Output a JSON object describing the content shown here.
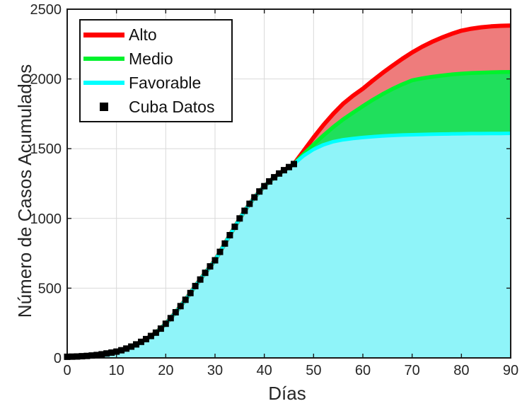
{
  "figure": {
    "background": "#ffffff"
  },
  "chart_data": {
    "type": "line",
    "title": "",
    "xlabel": "Días",
    "ylabel": "Número de Casos Acumulados",
    "xlim": [
      0,
      90
    ],
    "ylim": [
      0,
      2500
    ],
    "xticks": [
      0,
      10,
      20,
      30,
      40,
      50,
      60,
      70,
      80,
      90
    ],
    "yticks": [
      0,
      500,
      1000,
      1500,
      2000,
      2500
    ],
    "grid": true,
    "legend_position": "top-left",
    "colors": {
      "axis": "#1a1a1a",
      "grid": "#d9d9d9",
      "text": "#262626",
      "background": "#ffffff"
    },
    "series": [
      {
        "name": "Alto",
        "type": "line-area",
        "color": "#ff0000",
        "fill": "#ee7c7c",
        "line_width": 6,
        "x": [
          0,
          2,
          4,
          6,
          8,
          10,
          12,
          14,
          16,
          18,
          20,
          22,
          24,
          26,
          28,
          30,
          32,
          34,
          36,
          38,
          40,
          42,
          44,
          46,
          48,
          50,
          52,
          54,
          56,
          58,
          60,
          62,
          64,
          66,
          68,
          70,
          72,
          74,
          76,
          78,
          80,
          82,
          84,
          86,
          88,
          90
        ],
        "values": [
          8,
          10,
          14,
          21,
          32,
          45,
          67,
          97,
          135,
          181,
          245,
          327,
          417,
          515,
          610,
          700,
          820,
          940,
          1055,
          1151,
          1231,
          1295,
          1346,
          1390,
          1485,
          1580,
          1670,
          1750,
          1822,
          1880,
          1930,
          1988,
          2043,
          2095,
          2144,
          2190,
          2230,
          2265,
          2296,
          2323,
          2346,
          2360,
          2370,
          2377,
          2381,
          2383
        ]
      },
      {
        "name": "Medio",
        "type": "line-area",
        "color": "#00f22c",
        "fill": "#20df5c",
        "line_width": 5.5,
        "x": [
          0,
          2,
          4,
          6,
          8,
          10,
          12,
          14,
          16,
          18,
          20,
          22,
          24,
          26,
          28,
          30,
          32,
          34,
          36,
          38,
          40,
          42,
          44,
          46,
          48,
          50,
          52,
          54,
          56,
          58,
          60,
          62,
          64,
          66,
          68,
          70,
          72,
          74,
          76,
          78,
          80,
          82,
          84,
          86,
          88,
          90
        ],
        "values": [
          8,
          10,
          14,
          21,
          32,
          45,
          67,
          97,
          135,
          181,
          245,
          327,
          417,
          515,
          610,
          700,
          820,
          940,
          1055,
          1151,
          1231,
          1295,
          1346,
          1390,
          1462,
          1530,
          1595,
          1655,
          1710,
          1758,
          1805,
          1850,
          1891,
          1928,
          1961,
          1990,
          2004,
          2015,
          2024,
          2032,
          2038,
          2042,
          2045,
          2047,
          2049,
          2050
        ]
      },
      {
        "name": "Favorable",
        "type": "line-area",
        "color": "#00ffff",
        "fill": "#8ff4f9",
        "line_width": 5,
        "x": [
          0,
          2,
          4,
          6,
          8,
          10,
          12,
          14,
          16,
          18,
          20,
          22,
          24,
          26,
          28,
          30,
          32,
          34,
          36,
          38,
          40,
          42,
          44,
          46,
          48,
          50,
          52,
          54,
          56,
          58,
          60,
          62,
          64,
          66,
          68,
          70,
          72,
          74,
          76,
          78,
          80,
          82,
          84,
          86,
          88,
          90
        ],
        "values": [
          8,
          10,
          14,
          21,
          32,
          45,
          67,
          97,
          135,
          181,
          245,
          327,
          417,
          515,
          610,
          700,
          820,
          940,
          1055,
          1151,
          1231,
          1295,
          1346,
          1390,
          1450,
          1495,
          1528,
          1550,
          1564,
          1573,
          1580,
          1586,
          1591,
          1595,
          1598,
          1600,
          1602,
          1604,
          1605,
          1606,
          1607,
          1608,
          1608,
          1609,
          1609,
          1610
        ]
      },
      {
        "name": "Cuba Datos",
        "type": "scatter",
        "marker": "square",
        "color": "#000000",
        "marker_size": 9,
        "x": [
          0,
          1,
          2,
          3,
          4,
          5,
          6,
          7,
          8,
          9,
          10,
          11,
          12,
          13,
          14,
          15,
          16,
          17,
          18,
          19,
          20,
          21,
          22,
          23,
          24,
          25,
          26,
          27,
          28,
          29,
          30,
          31,
          32,
          33,
          34,
          35,
          36,
          37,
          38,
          39,
          40,
          41,
          42,
          43,
          44,
          45,
          46
        ],
        "values": [
          8,
          9,
          10,
          12,
          14,
          17,
          21,
          26,
          32,
          38,
          45,
          55,
          67,
          81,
          97,
          115,
          135,
          157,
          181,
          210,
          245,
          285,
          327,
          371,
          417,
          465,
          515,
          562,
          610,
          656,
          700,
          760,
          820,
          880,
          940,
          1000,
          1055,
          1105,
          1151,
          1193,
          1231,
          1265,
          1295,
          1322,
          1346,
          1368,
          1390
        ]
      }
    ]
  }
}
